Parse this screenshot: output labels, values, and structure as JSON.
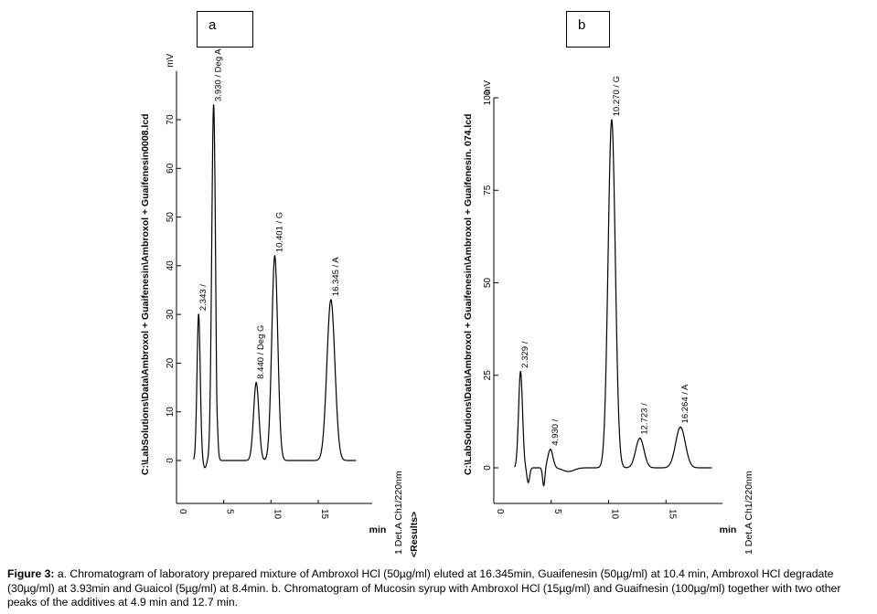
{
  "panel_labels": {
    "a": "a",
    "b": "b"
  },
  "caption": {
    "label": "Figure 3:",
    "text": " a. Chromatogram of laboratory prepared mixture of Ambroxol HCl (50µg/ml) eluted at 16.345min, Guaifenesin (50µg/ml) at 10.4 min, Ambroxol HCl degradate (30µg/ml) at 3.93min and Guaicol (5µg/ml) at 8.4min. b. Chromatogram of Mucosin syrup with Ambroxol HCl (15µg/ml) and Guaifnesin (100µg/ml) together with two other peaks of the additives at 4.9 min and 12.7 min."
  },
  "chart_data": [
    {
      "type": "line",
      "panel": "a",
      "path_label": "C:\\LabSolutions\\Data\\Ambroxol + Guaifenesin\\Ambroxol + Guaifenesin0008.lcd",
      "ylabel": "mV",
      "xlabel": "min",
      "detector_label": "1 Det.A Ch1/220nm",
      "results_label": "<Results>",
      "xlim": [
        0,
        20
      ],
      "ylim": [
        -10,
        80
      ],
      "x_ticks": [
        0,
        5,
        10,
        15
      ],
      "y_ticks": [
        0,
        10,
        20,
        30,
        40,
        50,
        60,
        70
      ],
      "peaks": [
        {
          "rt": 2.343,
          "height": 30,
          "label": "2.343 /"
        },
        {
          "rt": 3.93,
          "height": 73,
          "label": "3.930 / Deg A"
        },
        {
          "rt": 8.44,
          "height": 16,
          "label": "8.440 / Deg G"
        },
        {
          "rt": 10.401,
          "height": 42,
          "label": "10.401 / G"
        },
        {
          "rt": 16.345,
          "height": 33,
          "label": "16.345 / A"
        }
      ]
    },
    {
      "type": "line",
      "panel": "b",
      "path_label": "C:\\LabSolutions\\Data\\Ambroxol + Guaifenesin\\Ambroxol + Guaifenesin. 074.lcd",
      "ylabel": "mV",
      "xlabel": "min",
      "detector_label": "1 Det.A Ch1/220nm",
      "xlim": [
        0,
        20
      ],
      "ylim": [
        -10,
        100
      ],
      "x_ticks": [
        0,
        5,
        10,
        15
      ],
      "y_ticks": [
        0,
        25,
        50,
        75,
        100
      ],
      "peaks": [
        {
          "rt": 2.329,
          "height": 26,
          "label": "2.329 /"
        },
        {
          "rt": 4.93,
          "height": 5,
          "label": "4.930 /"
        },
        {
          "rt": 10.27,
          "height": 94,
          "label": "10.270 / G"
        },
        {
          "rt": 12.723,
          "height": 8,
          "label": "12.723 /"
        },
        {
          "rt": 16.264,
          "height": 11,
          "label": "16.264 / A"
        }
      ]
    }
  ]
}
